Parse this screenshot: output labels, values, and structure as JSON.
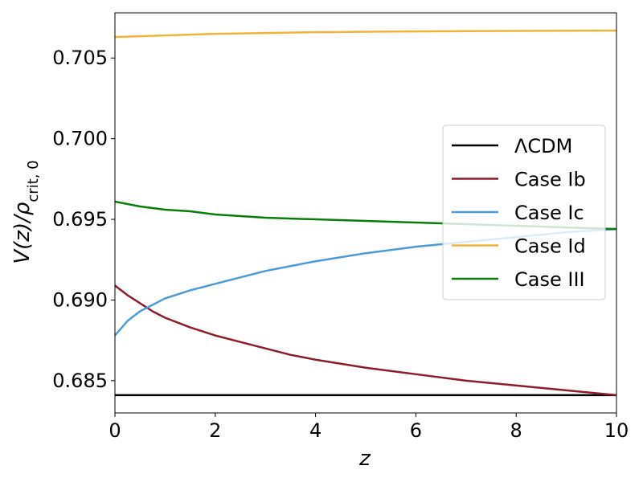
{
  "chart_data": {
    "type": "line",
    "title": "",
    "xlabel": "z",
    "ylabel": "V(z)/ρ_crit,0",
    "ylabel_main": "V(z)/ρ",
    "ylabel_sub": "crit, 0",
    "xlim": [
      0,
      10
    ],
    "ylim": [
      0.683,
      0.7078
    ],
    "xticks": [
      0,
      2,
      4,
      6,
      8,
      10
    ],
    "xtick_labels": [
      "0",
      "2",
      "4",
      "6",
      "8",
      "10"
    ],
    "yticks": [
      0.685,
      0.69,
      0.695,
      0.7,
      0.705
    ],
    "ytick_labels": [
      "0.685",
      "0.690",
      "0.695",
      "0.700",
      "0.705"
    ],
    "grid": false,
    "legend_position": "center-right",
    "series": [
      {
        "name": "ΛCDM",
        "color": "#000000",
        "x": [
          0,
          1,
          2,
          3,
          4,
          5,
          6,
          7,
          8,
          9,
          10
        ],
        "y": [
          0.6841,
          0.6841,
          0.6841,
          0.6841,
          0.6841,
          0.6841,
          0.6841,
          0.6841,
          0.6841,
          0.6841,
          0.6841
        ]
      },
      {
        "name": "Case Ib",
        "color": "#8B1E2D",
        "x": [
          0,
          0.25,
          0.5,
          0.75,
          1,
          1.5,
          2,
          2.5,
          3,
          3.5,
          4,
          5,
          6,
          7,
          8,
          9,
          10
        ],
        "y": [
          0.6909,
          0.6903,
          0.6898,
          0.6893,
          0.6889,
          0.6883,
          0.6878,
          0.6874,
          0.687,
          0.6866,
          0.6863,
          0.6858,
          0.6854,
          0.685,
          0.6847,
          0.6844,
          0.6841
        ]
      },
      {
        "name": "Case Ic",
        "color": "#4C9BD4",
        "x": [
          0,
          0.25,
          0.5,
          0.75,
          1,
          1.5,
          2,
          2.5,
          3,
          3.5,
          4,
          5,
          6,
          7,
          8,
          9,
          10
        ],
        "y": [
          0.6878,
          0.6887,
          0.6893,
          0.6897,
          0.6901,
          0.6906,
          0.691,
          0.6914,
          0.6918,
          0.6921,
          0.6924,
          0.6929,
          0.6933,
          0.6936,
          0.6939,
          0.6942,
          0.6944
        ]
      },
      {
        "name": "Case Id",
        "color": "#F0B43C",
        "x": [
          0,
          1,
          2,
          3,
          4,
          5,
          6,
          7,
          8,
          9,
          10
        ],
        "y": [
          0.7063,
          0.7064,
          0.7065,
          0.70655,
          0.7066,
          0.70663,
          0.70665,
          0.70667,
          0.70668,
          0.70669,
          0.7067
        ]
      },
      {
        "name": "Case III",
        "color": "#0A7D0A",
        "x": [
          0,
          0.5,
          1,
          1.5,
          2,
          3,
          4,
          5,
          6,
          7,
          8,
          9,
          10
        ],
        "y": [
          0.6961,
          0.6958,
          0.6956,
          0.6955,
          0.6953,
          0.6951,
          0.695,
          0.6949,
          0.6948,
          0.6947,
          0.6946,
          0.6945,
          0.6944
        ]
      }
    ]
  }
}
